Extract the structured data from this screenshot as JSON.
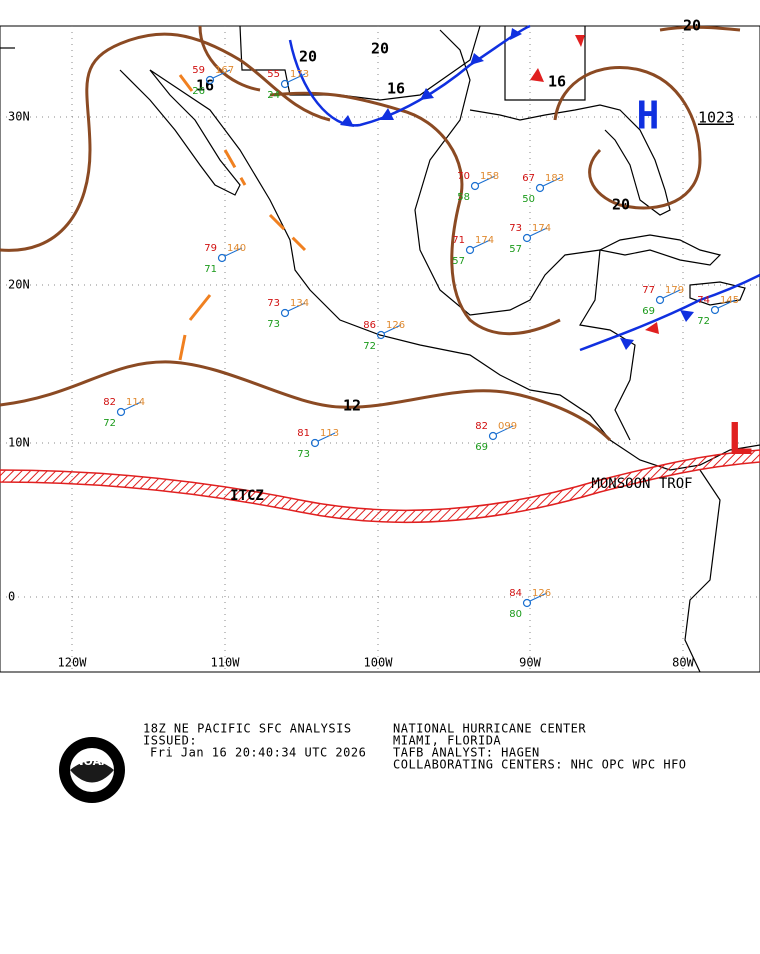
{
  "lat_labels": [
    "30N",
    "20N",
    "10N",
    "0"
  ],
  "lon_labels": [
    "120W",
    "110W",
    "100W",
    "90W",
    "80W"
  ],
  "isobar_labels": [
    "20",
    "20",
    "16",
    "16",
    "16",
    "20",
    "20",
    "12"
  ],
  "features": {
    "high": "H",
    "high_pressure": "1023",
    "low": "L",
    "itcz": "ITCZ",
    "monsoon": "MONSOON TROF"
  },
  "stations": [
    {
      "temp": "59",
      "pressure": "167",
      "dew": "26"
    },
    {
      "temp": "55",
      "pressure": "173",
      "dew": "24"
    },
    {
      "temp": "79",
      "pressure": "140",
      "dew": "71"
    },
    {
      "temp": "73",
      "pressure": "134",
      "dew": "73"
    },
    {
      "temp": "86",
      "pressure": "126",
      "dew": "72"
    },
    {
      "temp": "82",
      "pressure": "114",
      "dew": "72"
    },
    {
      "temp": "81",
      "pressure": "113",
      "dew": "73"
    },
    {
      "temp": "82",
      "pressure": "099",
      "dew": "69"
    },
    {
      "temp": "71",
      "pressure": "174",
      "dew": "57"
    },
    {
      "temp": "73",
      "pressure": "174",
      "dew": "57"
    },
    {
      "temp": "67",
      "pressure": "183",
      "dew": "50"
    },
    {
      "temp": "70",
      "pressure": "158",
      "dew": "58"
    },
    {
      "temp": "84",
      "pressure": "126",
      "dew": "80"
    },
    {
      "temp": "77",
      "pressure": "179",
      "dew": "69"
    },
    {
      "temp": "74",
      "pressure": "145",
      "dew": "72"
    }
  ],
  "footer": {
    "product": "18Z NE PACIFIC SFC ANALYSIS",
    "issued": "ISSUED:",
    "time": "Fri Jan 16 20:40:34 UTC 2026",
    "center": "NATIONAL HURRICANE CENTER",
    "location": "MIAMI, FLORIDA",
    "analyst": "TAFB ANALYST: HAGEN",
    "collab": "COLLABORATING CENTERS: NHC OPC WPC HFO"
  }
}
